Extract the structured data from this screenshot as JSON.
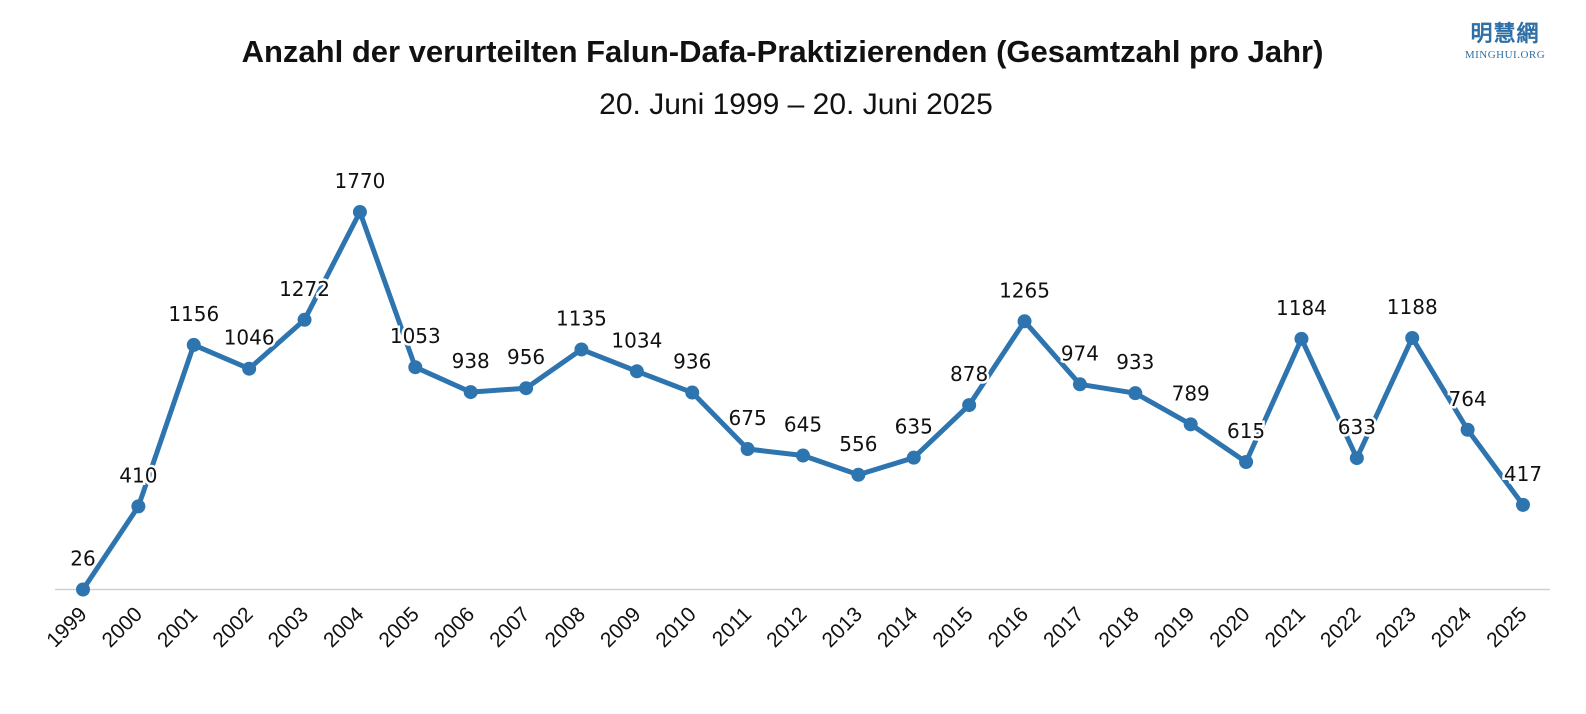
{
  "header": {
    "title": "Anzahl der verurteilten Falun-Dafa-Praktizierenden (Gesamtzahl pro Jahr)",
    "subtitle": "20. Juni 1999 – 20. Juni 2025"
  },
  "logo": {
    "chinese": "明慧網",
    "english": "MINGHUI.ORG"
  },
  "colors": {
    "line": "#2e75b0",
    "axis": "#d0d0d0",
    "text": "#111111",
    "brand": "#2e6fa6"
  },
  "chart_data": {
    "type": "line",
    "title": "Anzahl der verurteilten Falun-Dafa-Praktizierenden (Gesamtzahl pro Jahr)",
    "subtitle": "20. Juni 1999 – 20. Juni 2025",
    "xlabel": "",
    "ylabel": "",
    "grid": false,
    "legend": "none",
    "data_labels": true,
    "ylim": [
      0,
      1800
    ],
    "categories": [
      "1999",
      "2000",
      "2001",
      "2002",
      "2003",
      "2004",
      "2005",
      "2006",
      "2007",
      "2008",
      "2009",
      "2010",
      "2011",
      "2012",
      "2013",
      "2014",
      "2015",
      "2016",
      "2017",
      "2018",
      "2019",
      "2020",
      "2021",
      "2022",
      "2023",
      "2024",
      "2025"
    ],
    "values": [
      26,
      410,
      1156,
      1046,
      1272,
      1770,
      1053,
      938,
      956,
      1135,
      1034,
      936,
      675,
      645,
      556,
      635,
      878,
      1265,
      974,
      933,
      789,
      615,
      1184,
      633,
      1188,
      764,
      417
    ]
  }
}
